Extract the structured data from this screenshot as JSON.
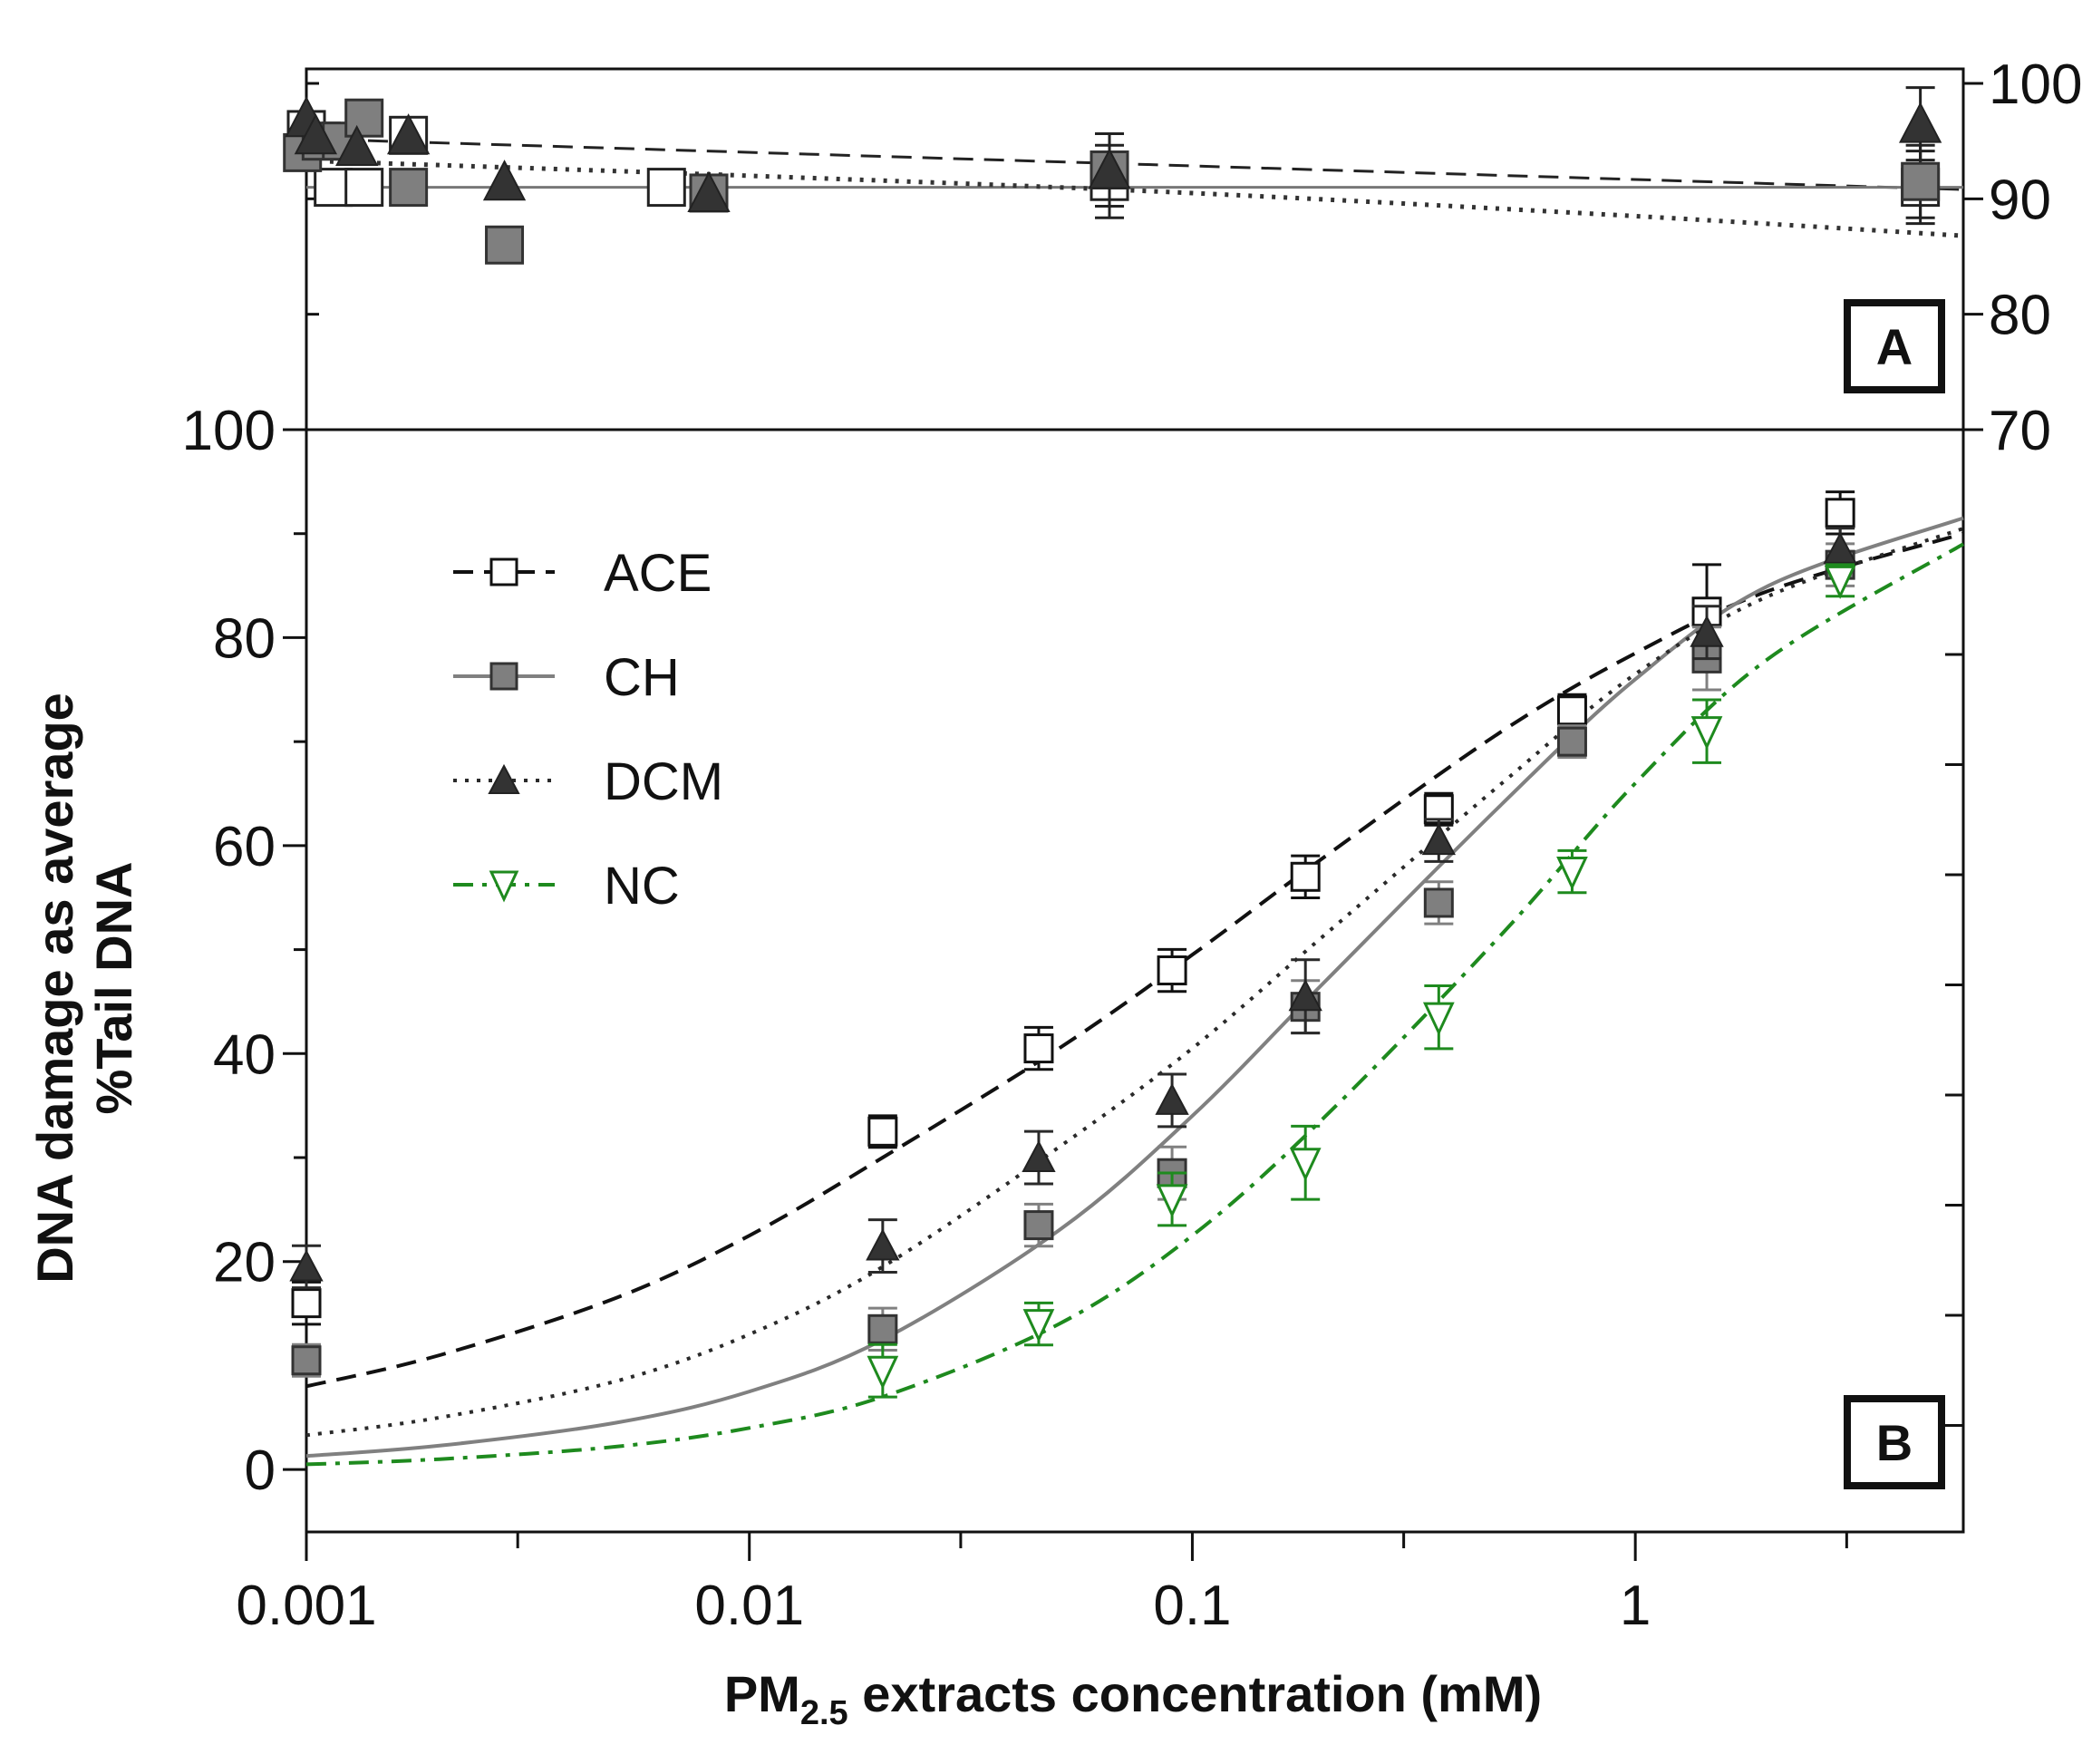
{
  "chart_data": [
    {
      "panel": "A",
      "type": "scatter",
      "title": "",
      "xlabel": "",
      "ylabel": "",
      "x_scale": "log",
      "xlim": [
        0.001,
        5.5
      ],
      "ylim": [
        70,
        100
      ],
      "y_axis_side": "right",
      "y_ticks": [
        70,
        80,
        90,
        100
      ],
      "panel_label": "A",
      "series": [
        {
          "name": "ACE",
          "color": "#222222",
          "marker": "open-square",
          "line": "dashed",
          "points": [
            [
              0.001,
              96.0
            ],
            [
              0.00115,
              91.0
            ],
            [
              0.00135,
              91.0
            ],
            [
              0.0017,
              95.5
            ],
            [
              0.0065,
              91.0
            ],
            [
              0.065,
              91.5
            ],
            [
              4.4,
              91.0
            ]
          ],
          "fit": [
            [
              0.001,
              95.2
            ],
            [
              5.5,
              90.8
            ]
          ]
        },
        {
          "name": "CH",
          "color": "#777777",
          "marker": "filled-square",
          "line": "solid",
          "points": [
            [
              0.00098,
              94.0
            ],
            [
              0.00108,
              95.0
            ],
            [
              0.0012,
              95.0
            ],
            [
              0.00135,
              97.0
            ],
            [
              0.0017,
              91.0
            ],
            [
              0.0028,
              86.0
            ],
            [
              0.0081,
              90.5
            ],
            [
              0.065,
              92.5
            ],
            [
              4.4,
              91.5
            ]
          ],
          "fit": [
            [
              0.001,
              91.0
            ],
            [
              5.5,
              91.0
            ]
          ]
        },
        {
          "name": "DCM",
          "color": "#333333",
          "marker": "filled-triangle",
          "line": "dotted",
          "points": [
            [
              0.001,
              97.0
            ],
            [
              0.00105,
              95.5
            ],
            [
              0.0013,
              94.5
            ],
            [
              0.0017,
              95.5
            ],
            [
              0.0028,
              91.5
            ],
            [
              0.0081,
              90.5
            ],
            [
              0.065,
              92.5
            ],
            [
              4.4,
              96.5
            ]
          ],
          "fit": [
            [
              0.001,
              93.3
            ],
            [
              0.01,
              92.0
            ],
            [
              0.1,
              90.5
            ],
            [
              1,
              88.5
            ],
            [
              5.5,
              86.8
            ]
          ]
        }
      ]
    },
    {
      "panel": "B",
      "type": "line",
      "title": "",
      "xlabel": "PM2.5 extracts concentration (mM)",
      "xlabel_main": "PM",
      "xlabel_sub": "2.5",
      "xlabel_rest": " extracts concentration (mM)",
      "ylabel_line1": "DNA damage  as average",
      "ylabel_line2": "%Tail DNA",
      "x_scale": "log",
      "xlim": [
        0.001,
        5.5
      ],
      "ylim": [
        -6,
        100
      ],
      "x_ticks": [
        0.001,
        0.01,
        0.1,
        1
      ],
      "x_tick_labels": [
        "0.001",
        "0.01",
        "0.1",
        "1"
      ],
      "y_ticks": [
        0,
        20,
        40,
        60,
        80,
        100
      ],
      "y_tick_labels": [
        "0",
        "20",
        "40",
        "60",
        "80",
        "100"
      ],
      "panel_label": "B",
      "legend": [
        "ACE",
        "CH",
        "DCM",
        "NC"
      ],
      "legend_position": "upper-left",
      "series": [
        {
          "name": "ACE",
          "color": "#111111",
          "marker": "open-square",
          "line": "dashed",
          "x": [
            0.001,
            0.02,
            0.045,
            0.09,
            0.18,
            0.36,
            0.72,
            1.45,
            2.9
          ],
          "y": [
            16,
            32.5,
            40.5,
            48,
            57,
            63.5,
            73,
            82.5,
            92
          ],
          "err": [
            1.5,
            1,
            1.5,
            1.5,
            1.5,
            1,
            1,
            4,
            1.5
          ],
          "fit": [
            [
              0.001,
              8
            ],
            [
              0.002,
              11
            ],
            [
              0.005,
              16.5
            ],
            [
              0.01,
              22.5
            ],
            [
              0.02,
              30
            ],
            [
              0.05,
              40.5
            ],
            [
              0.1,
              49.5
            ],
            [
              0.2,
              59
            ],
            [
              0.5,
              71
            ],
            [
              1,
              78.5
            ],
            [
              2,
              84.5
            ],
            [
              5.5,
              90
            ]
          ]
        },
        {
          "name": "CH",
          "color": "#808080",
          "marker": "filled-square",
          "line": "solid",
          "x": [
            0.001,
            0.02,
            0.045,
            0.09,
            0.18,
            0.36,
            0.72,
            1.45,
            2.9
          ],
          "y": [
            10.5,
            13.5,
            23.5,
            28.5,
            44.5,
            54.5,
            70,
            78,
            87
          ],
          "err": [
            1,
            1.5,
            1.5,
            2,
            2,
            1.5,
            1,
            2.5,
            1.5
          ],
          "fit": [
            [
              0.001,
              1.3
            ],
            [
              0.002,
              2.3
            ],
            [
              0.005,
              4.5
            ],
            [
              0.01,
              7.5
            ],
            [
              0.02,
              12.5
            ],
            [
              0.05,
              23
            ],
            [
              0.1,
              34
            ],
            [
              0.2,
              47
            ],
            [
              0.5,
              64
            ],
            [
              1,
              76
            ],
            [
              2,
              85
            ],
            [
              5.5,
              91.5
            ]
          ]
        },
        {
          "name": "DCM",
          "color": "#2a2a2a",
          "marker": "filled-triangle",
          "line": "dotted",
          "x": [
            0.001,
            0.02,
            0.045,
            0.09,
            0.18,
            0.36,
            1.45,
            2.9
          ],
          "y": [
            19.5,
            21.5,
            30,
            35.5,
            45.5,
            60.5,
            80.5,
            88.5
          ],
          "err": [
            1.5,
            2,
            2,
            2,
            3,
            1.5,
            2,
            1.5
          ],
          "fit": [
            [
              0.001,
              3.3
            ],
            [
              0.002,
              5
            ],
            [
              0.005,
              8.5
            ],
            [
              0.01,
              13
            ],
            [
              0.02,
              19.5
            ],
            [
              0.05,
              31
            ],
            [
              0.1,
              40.5
            ],
            [
              0.2,
              51.5
            ],
            [
              0.5,
              66
            ],
            [
              1,
              76.5
            ],
            [
              2,
              84
            ],
            [
              5.5,
              90.5
            ]
          ]
        },
        {
          "name": "NC",
          "color": "#1e8a1e",
          "marker": "open-triangle-down",
          "line": "dashdot",
          "x": [
            0.02,
            0.045,
            0.09,
            0.18,
            0.36,
            0.72,
            1.45,
            2.9
          ],
          "y": [
            9.5,
            14,
            26,
            29.5,
            43.5,
            57.5,
            71,
            85.5
          ],
          "err": [
            2,
            1.5,
            2,
            3,
            2.5,
            1.5,
            2.5,
            1
          ],
          "fit": [
            [
              0.001,
              0.5
            ],
            [
              0.002,
              1
            ],
            [
              0.005,
              2.2
            ],
            [
              0.01,
              4
            ],
            [
              0.02,
              7
            ],
            [
              0.05,
              14
            ],
            [
              0.1,
              22.5
            ],
            [
              0.2,
              34
            ],
            [
              0.5,
              51.5
            ],
            [
              1,
              66
            ],
            [
              2,
              78
            ],
            [
              5.5,
              89
            ]
          ]
        }
      ]
    }
  ]
}
